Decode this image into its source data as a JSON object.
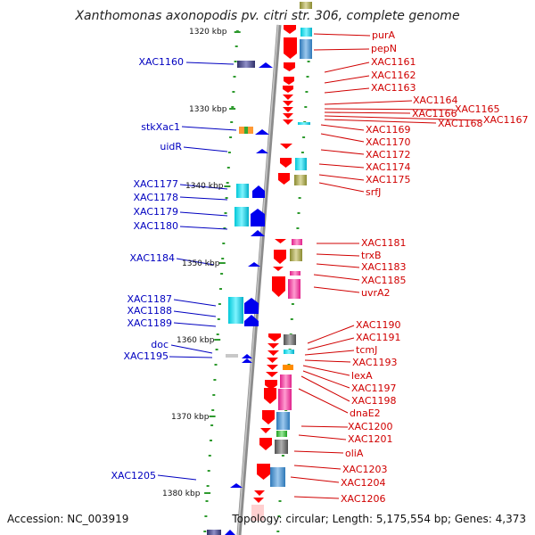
{
  "title": "Xanthomonas axonopodis pv. citri str. 306, complete genome",
  "footer": {
    "accession": "Accession: NC_003919",
    "topology": "Topology: circular; Length: 5,175,554 bp; Genes: 4,373"
  },
  "colors": {
    "left_label": "#0000c0",
    "right_label": "#d00000",
    "tick": "#2e9a2e"
  },
  "kbp_labels": [
    "1320 kbp",
    "1330 kbp",
    "1340 kbp",
    "1350 kbp",
    "1360 kbp",
    "1370 kbp",
    "1380 kbp"
  ],
  "left_labels": [
    "XAC1160",
    "stkXac1",
    "uidR",
    "XAC1177",
    "XAC1178",
    "XAC1179",
    "XAC1180",
    "XAC1184",
    "XAC1187",
    "XAC1188",
    "XAC1189",
    "doc",
    "XAC1195",
    "XAC1205"
  ],
  "right_labels": [
    "purA",
    "pepN",
    "XAC1161",
    "XAC1162",
    "XAC1163",
    "XAC1164",
    "XAC1165",
    "XAC1166",
    "XAC1168",
    "XAC1167",
    "XAC1169",
    "XAC1170",
    "XAC1172",
    "XAC1174",
    "XAC1175",
    "srfJ",
    "XAC1181",
    "trxB",
    "XAC1183",
    "XAC1185",
    "uvrA2",
    "XAC1190",
    "XAC1191",
    "tcmJ",
    "XAC1193",
    "lexA",
    "XAC1197",
    "XAC1198",
    "dnaE2",
    "XAC1200",
    "XAC1201",
    "oliA",
    "XAC1203",
    "XAC1204",
    "XAC1206"
  ]
}
